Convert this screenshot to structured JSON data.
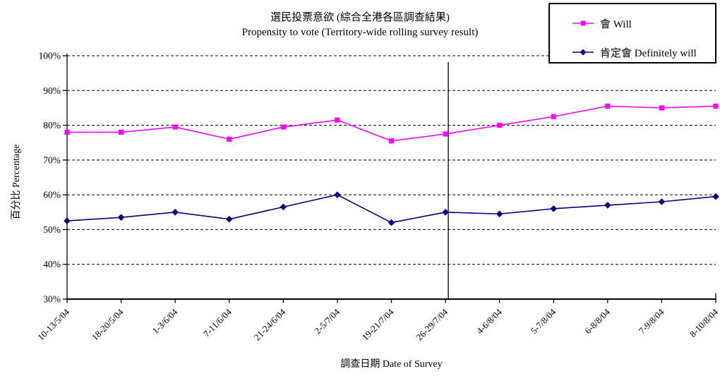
{
  "chart_data": {
    "type": "line",
    "title_zh": "選民投票意欲 (綜合全港各區調查結果)",
    "title_en": "Propensity to vote (Territory-wide rolling survey result)",
    "xlabel": "調查日期 Date of Survey",
    "ylabel": "百分比 Percentage",
    "ylim": [
      30,
      100
    ],
    "ytick_step": 10,
    "ytick_suffix": "%",
    "grid": "horizontal-dashed",
    "legend_position": "top-right",
    "categories": [
      "10-13/5/04",
      "18-20/5/04",
      "1-3/6/04",
      "7-11/6/04",
      "21-24/6/04",
      "2-5/7/04",
      "19-21/7/04",
      "26-29/7/04",
      "4-6/8/04",
      "5-7/8/04",
      "6-8/8/04",
      "7-9/8/04",
      "8-10/8/04"
    ],
    "series": [
      {
        "name": "會 Will",
        "color": "#FF00FF",
        "marker": "square",
        "values": [
          78,
          78,
          79.5,
          76,
          79.5,
          81.5,
          75.5,
          77.5,
          80,
          82.5,
          85.5,
          85,
          85.5
        ]
      },
      {
        "name": "肯定會 Definitely will",
        "color": "#000080",
        "marker": "diamond",
        "values": [
          52.5,
          53.5,
          55,
          53,
          56.5,
          60,
          52,
          55,
          54.5,
          56,
          57,
          58,
          59.5
        ]
      }
    ],
    "divider_after_category": "26-29/7/04"
  }
}
